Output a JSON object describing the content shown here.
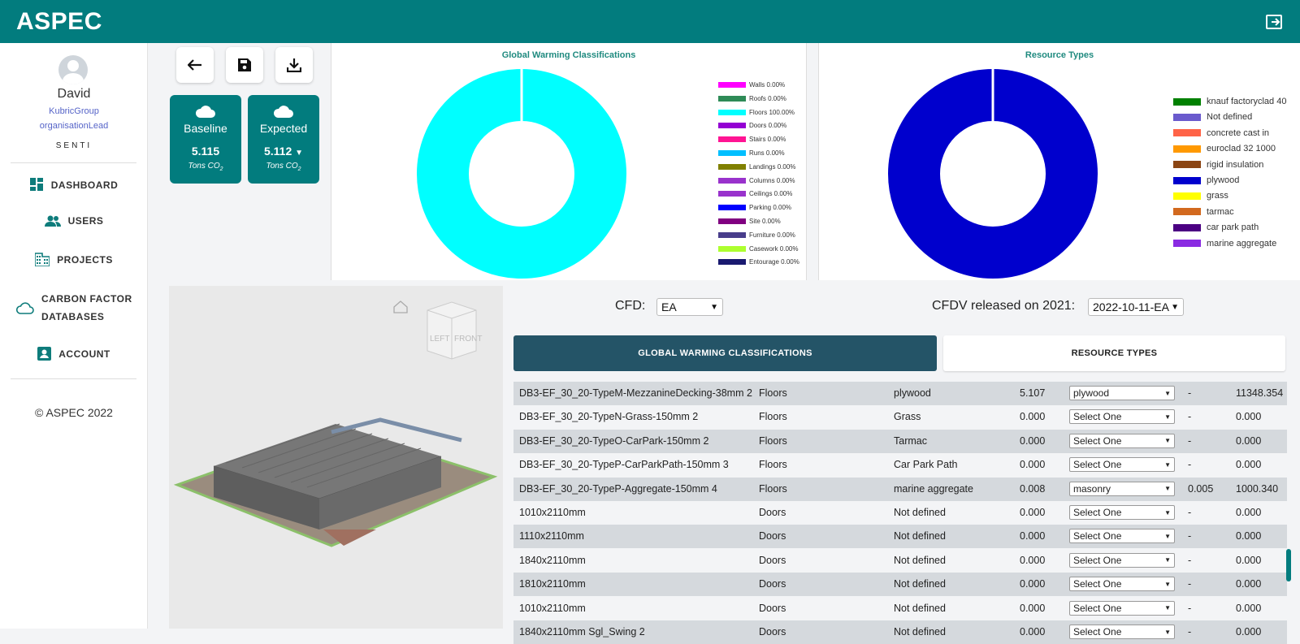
{
  "app": {
    "title": "ASPEC"
  },
  "colors": {
    "primary": "#027c7e",
    "tab_active": "#245467"
  },
  "user": {
    "name": "David",
    "organisation": "KubricGroup",
    "role": "organisationLead",
    "logo_text": "SENTI"
  },
  "nav": [
    {
      "label": "DASHBOARD",
      "icon": "dashboard-icon"
    },
    {
      "label": "USERS",
      "icon": "users-icon"
    },
    {
      "label": "PROJECTS",
      "icon": "projects-icon"
    },
    {
      "label_line1": "CARBON FACTOR",
      "label_line2": "DATABASES",
      "icon": "cloud-icon"
    },
    {
      "label": "ACCOUNT",
      "icon": "account-icon"
    }
  ],
  "footer": {
    "copyright": "© ASPEC 2022"
  },
  "toolbar": {
    "back_icon": "arrow-left-icon",
    "save_icon": "save-icon",
    "download_icon": "download-icon"
  },
  "cards": {
    "baseline": {
      "title": "Baseline",
      "value": "5.115",
      "unit": "Tons CO",
      "unit_sub": "2"
    },
    "expected": {
      "title": "Expected",
      "value": "5.112",
      "unit": "Tons CO",
      "unit_sub": "2"
    }
  },
  "chart_data": [
    {
      "type": "pie",
      "title": "Global Warming Classifications",
      "labels": [
        "Walls 0.00%",
        "Roofs 0.00%",
        "Floors 100.00%",
        "Doors 0.00%",
        "Stairs 0.00%",
        "Runs 0.00%",
        "Landings 0.00%",
        "Columns 0.00%",
        "Ceilings 0.00%",
        "Parking 0.00%",
        "Site 0.00%",
        "Furniture 0.00%",
        "Casework 0.00%",
        "Entourage 0.00%"
      ],
      "values": [
        0,
        0,
        100,
        0,
        0,
        0,
        0,
        0,
        0,
        0,
        0,
        0,
        0,
        0
      ],
      "colors": [
        "#ff00ff",
        "#2e8b57",
        "#00ffff",
        "#9400d3",
        "#ff1493",
        "#00bfff",
        "#808000",
        "#9932cc",
        "#9932cc",
        "#0000ff",
        "#800080",
        "#483d8b",
        "#adff2f",
        "#191970"
      ],
      "legend": "right"
    },
    {
      "type": "pie",
      "title": "Resource Types",
      "labels": [
        "knauf factoryclad 40",
        "Not defined",
        "concrete cast in",
        "euroclad 32 1000",
        "rigid insulation",
        "plywood",
        "grass",
        "tarmac",
        "car park path",
        "marine aggregate"
      ],
      "values": [
        0,
        0,
        0,
        0,
        0,
        100,
        0,
        0,
        0,
        0
      ],
      "colors": [
        "#008000",
        "#6a5acd",
        "#ff6347",
        "#ff9900",
        "#8b4513",
        "#0000cd",
        "#ffff00",
        "#d2691e",
        "#4b0082",
        "#8a2be2"
      ],
      "legend": "right"
    }
  ],
  "viewer": {
    "home_icon": "home-icon",
    "cube_left": "LEFT",
    "cube_front": "FRONT"
  },
  "filters": {
    "cfd_label": "CFD:",
    "cfd_value": "EA",
    "cfdv_label": "CFDV released on 2021:",
    "cfdv_value": "2022-10-11-EA"
  },
  "tabs": {
    "active": "GLOBAL WARMING CLASSIFICATIONS",
    "inactive": "RESOURCE TYPES"
  },
  "table": {
    "rows": [
      {
        "name": "DB3-EF_30_20-TypeM-MezzanineDecking-38mm 2",
        "category": "Floors",
        "material": "plywood",
        "value": "5.107",
        "select": "plywood",
        "factor": "-",
        "total": "11348.354"
      },
      {
        "name": "DB3-EF_30_20-TypeN-Grass-150mm 2",
        "category": "Floors",
        "material": "Grass",
        "value": "0.000",
        "select": "Select One",
        "factor": "-",
        "total": "0.000"
      },
      {
        "name": "DB3-EF_30_20-TypeO-CarPark-150mm 2",
        "category": "Floors",
        "material": "Tarmac",
        "value": "0.000",
        "select": "Select One",
        "factor": "-",
        "total": "0.000"
      },
      {
        "name": "DB3-EF_30_20-TypeP-CarParkPath-150mm 3",
        "category": "Floors",
        "material": "Car Park Path",
        "value": "0.000",
        "select": "Select One",
        "factor": "-",
        "total": "0.000"
      },
      {
        "name": "DB3-EF_30_20-TypeP-Aggregate-150mm 4",
        "category": "Floors",
        "material": "marine aggregate",
        "value": "0.008",
        "select": "masonry",
        "factor": "0.005",
        "total": "1000.340"
      },
      {
        "name": "1010x2110mm",
        "category": "Doors",
        "material": "Not defined",
        "value": "0.000",
        "select": "Select One",
        "factor": "-",
        "total": "0.000"
      },
      {
        "name": "1110x2110mm",
        "category": "Doors",
        "material": "Not defined",
        "value": "0.000",
        "select": "Select One",
        "factor": "-",
        "total": "0.000"
      },
      {
        "name": "1840x2110mm",
        "category": "Doors",
        "material": "Not defined",
        "value": "0.000",
        "select": "Select One",
        "factor": "-",
        "total": "0.000"
      },
      {
        "name": "1810x2110mm",
        "category": "Doors",
        "material": "Not defined",
        "value": "0.000",
        "select": "Select One",
        "factor": "-",
        "total": "0.000"
      },
      {
        "name": "1010x2110mm",
        "category": "Doors",
        "material": "Not defined",
        "value": "0.000",
        "select": "Select One",
        "factor": "-",
        "total": "0.000"
      },
      {
        "name": "1840x2110mm Sgl_Swing 2",
        "category": "Doors",
        "material": "Not defined",
        "value": "0.000",
        "select": "Select One",
        "factor": "-",
        "total": "0.000"
      }
    ]
  }
}
